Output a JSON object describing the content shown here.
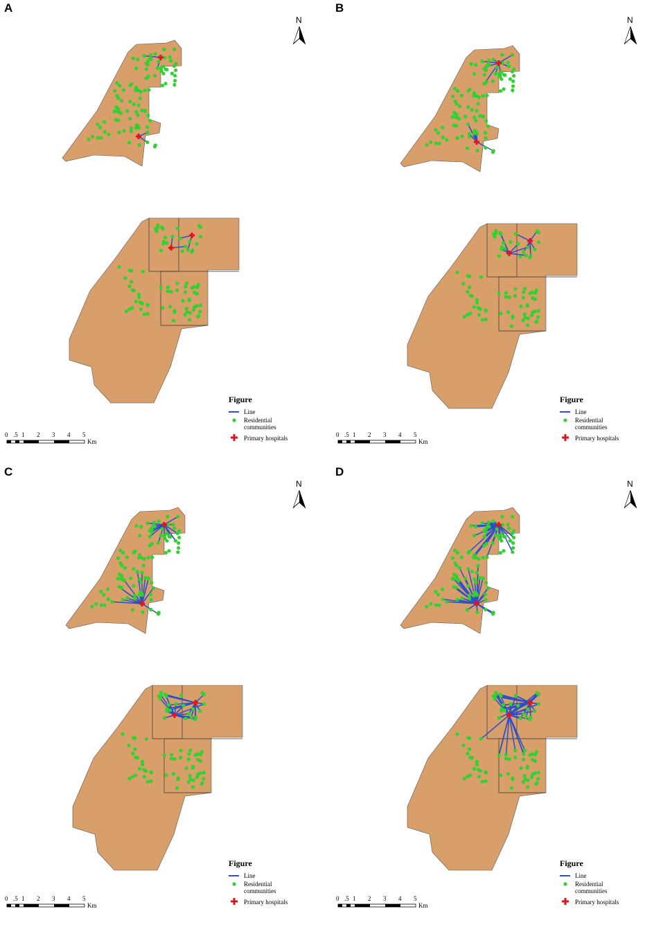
{
  "panels": [
    {
      "label": "A",
      "north": "N",
      "legend": {
        "title": "Figure",
        "items": [
          "Line",
          "Residential communities",
          "Primary hospitals"
        ]
      },
      "scale": {
        "ticks": [
          "0",
          ".5",
          "1",
          "2",
          "3",
          "4",
          "5"
        ],
        "unit": "Km"
      }
    },
    {
      "label": "B",
      "north": "N",
      "legend": {
        "title": "Figure",
        "items": [
          "Line",
          "Residential communities",
          "Primary hospitals"
        ]
      },
      "scale": {
        "ticks": [
          "0",
          ".5",
          "1",
          "2",
          "3",
          "4",
          "5"
        ],
        "unit": "Km"
      }
    },
    {
      "label": "C",
      "north": "N",
      "legend": {
        "title": "Figure",
        "items": [
          "Line",
          "Residential communities",
          "Primary hospitals"
        ]
      },
      "scale": {
        "ticks": [
          "0",
          ".5",
          "1",
          "2",
          "3",
          "4",
          "5"
        ],
        "unit": "Km"
      }
    },
    {
      "label": "D",
      "north": "N",
      "legend": {
        "title": "Figure",
        "items": [
          "Line",
          "Residential communities",
          "Primary hospitals"
        ]
      },
      "scale": {
        "ticks": [
          "0",
          ".5",
          "1",
          "2",
          "3",
          "4",
          "5"
        ],
        "unit": "Km"
      }
    }
  ]
}
